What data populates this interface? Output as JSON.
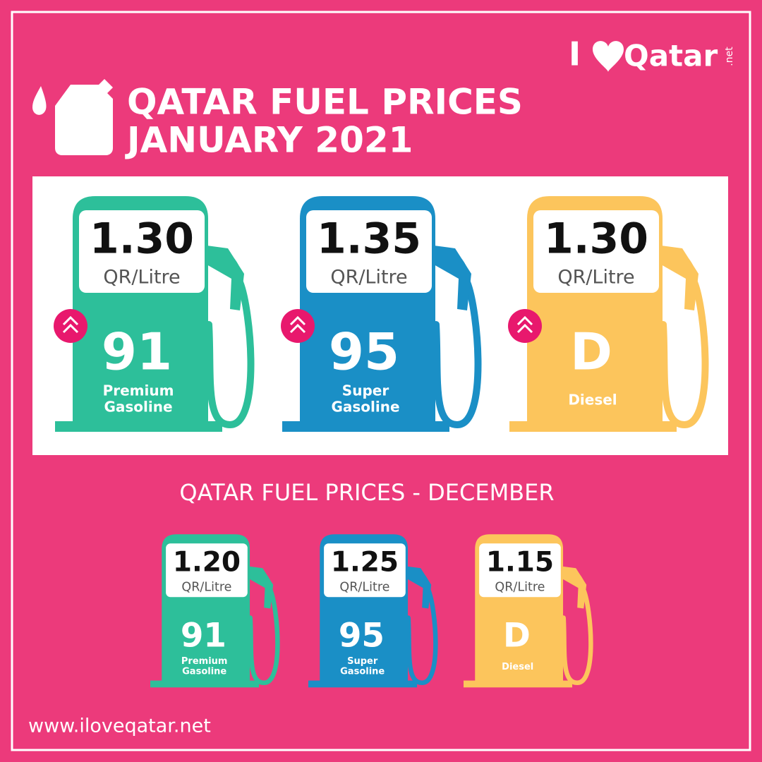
{
  "logo": {
    "parts": [
      "I",
      "Qatar",
      ".net"
    ]
  },
  "header": {
    "title_lines": [
      "QATAR FUEL PRICES",
      "JANUARY 2021"
    ]
  },
  "current": {
    "pumps": [
      {
        "price": "1.30",
        "unit": "QR/Litre",
        "grade": "91",
        "name": [
          "Premium",
          "Gasoline"
        ]
      },
      {
        "price": "1.35",
        "unit": "QR/Litre",
        "grade": "95",
        "name": [
          "Super",
          "Gasoline"
        ]
      },
      {
        "price": "1.30",
        "unit": "QR/Litre",
        "grade": "D",
        "name": [
          "Diesel"
        ]
      }
    ]
  },
  "previous": {
    "heading": "QATAR FUEL PRICES - DECEMBER",
    "pumps": [
      {
        "price": "1.20",
        "unit": "QR/Litre",
        "grade": "91",
        "name": [
          "Premium",
          "Gasoline"
        ]
      },
      {
        "price": "1.25",
        "unit": "QR/Litre",
        "grade": "95",
        "name": [
          "Super",
          "Gasoline"
        ]
      },
      {
        "price": "1.15",
        "unit": "QR/Litre",
        "grade": "D",
        "name": [
          "Diesel"
        ]
      }
    ]
  },
  "footer": {
    "website": "www.iloveqatar.net"
  }
}
